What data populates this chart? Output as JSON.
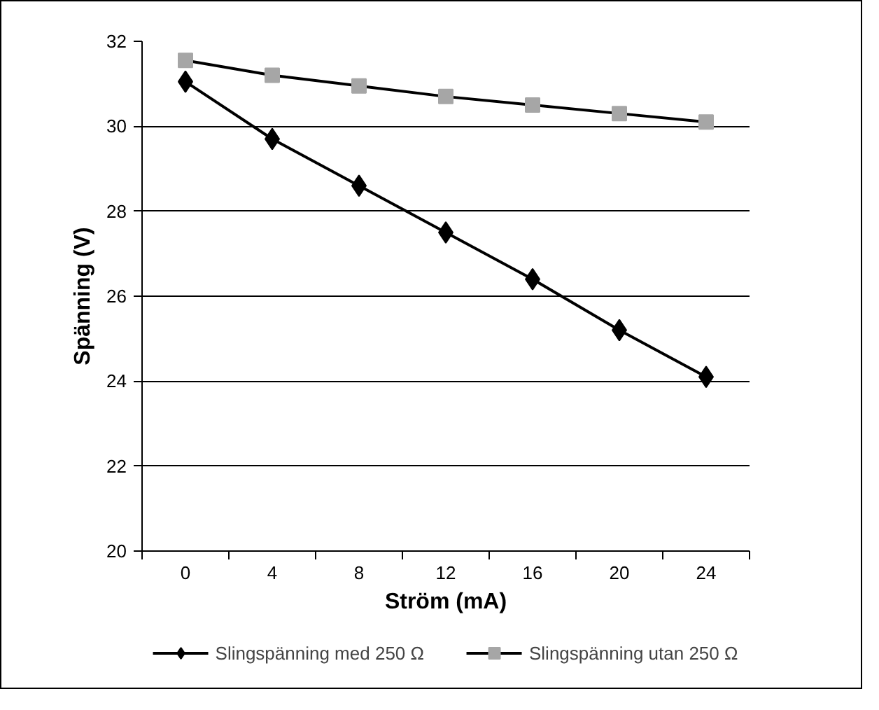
{
  "chart_data": {
    "type": "line",
    "xlabel": "Ström (mA)",
    "ylabel": "Spänning (V)",
    "categories": [
      "0",
      "4",
      "8",
      "12",
      "16",
      "20",
      "24"
    ],
    "series": [
      {
        "name": "Slingspänning med 250 Ω",
        "color": "#000000",
        "marker": "diamond",
        "values": [
          31.05,
          29.7,
          28.6,
          27.5,
          26.4,
          25.2,
          24.1
        ]
      },
      {
        "name": "Slingspänning utan 250 Ω",
        "color": "#a6a6a6",
        "marker": "square",
        "values": [
          31.55,
          31.2,
          30.95,
          30.7,
          30.5,
          30.3,
          30.1
        ]
      }
    ],
    "ylim": [
      20,
      32
    ],
    "yticks": [
      20,
      22,
      24,
      26,
      28,
      30,
      32
    ],
    "grid": "y",
    "legend": "bottom",
    "line_style": "solid"
  }
}
